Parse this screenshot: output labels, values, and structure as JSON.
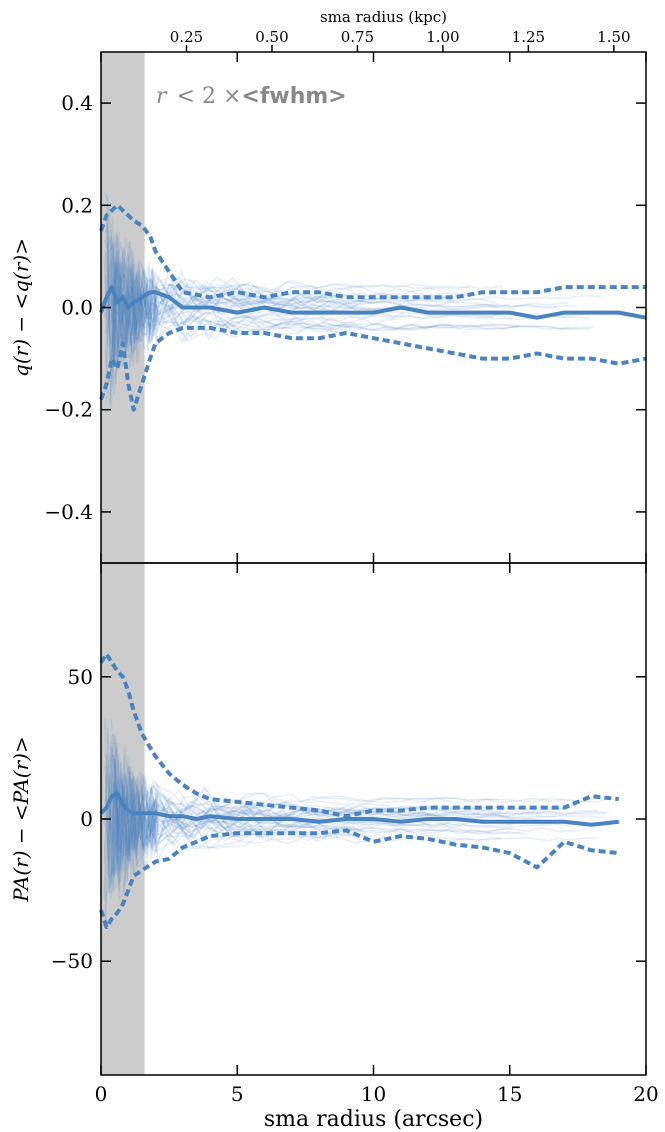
{
  "chart_data": [
    {
      "type": "line",
      "panel": "top",
      "ylabel": "q(r) − <q(r)>",
      "xlim": [
        0,
        20
      ],
      "ylim": [
        -0.5,
        0.5
      ],
      "yticks": [
        -0.4,
        -0.2,
        0.0,
        0.2,
        0.4
      ],
      "ytick_labels": [
        "−0.4",
        "−0.2",
        "0.0",
        "0.2",
        "0.4"
      ],
      "top_axis": {
        "label": "sma radius (kpc)",
        "ticks": [
          0.25,
          0.5,
          0.75,
          1.0,
          1.25,
          1.5
        ],
        "tick_labels": [
          "0.25",
          "0.50",
          "0.75",
          "1.00",
          "1.25",
          "1.50"
        ],
        "kpc_per_arcsec": 0.0797
      },
      "shaded_region": {
        "x": [
          0,
          1.6
        ],
        "label_prefix": "r",
        "label_mid": "< 2 ×",
        "label_suffix": "<fwhm>"
      },
      "series": [
        {
          "role": "median",
          "style": "solid",
          "x": [
            0,
            0.2,
            0.4,
            0.6,
            0.8,
            1.0,
            1.2,
            1.5,
            1.8,
            2.0,
            2.5,
            3.0,
            4.0,
            5.0,
            6.0,
            7.0,
            8.0,
            9.0,
            10.0,
            11.0,
            12.0,
            13.0,
            14.0,
            15.0,
            16.0,
            17.0,
            18.0,
            19.0,
            20.0
          ],
          "y": [
            -0.01,
            0.02,
            0.04,
            0.01,
            0.02,
            0.0,
            0.01,
            0.02,
            0.03,
            0.03,
            0.02,
            0.0,
            0.0,
            -0.01,
            0.0,
            -0.01,
            -0.01,
            -0.01,
            -0.01,
            0.0,
            -0.01,
            -0.01,
            -0.01,
            -0.01,
            -0.02,
            -0.01,
            -0.01,
            -0.01,
            -0.02
          ]
        },
        {
          "role": "upper",
          "style": "dashed",
          "x": [
            0,
            0.2,
            0.4,
            0.6,
            0.8,
            1.0,
            1.2,
            1.5,
            1.8,
            2.0,
            2.5,
            3.0,
            4.0,
            5.0,
            6.0,
            7.0,
            8.0,
            9.0,
            10.0,
            11.0,
            12.0,
            13.0,
            14.0,
            15.0,
            16.0,
            17.0,
            18.0,
            19.0,
            20.0
          ],
          "y": [
            0.15,
            0.18,
            0.19,
            0.2,
            0.19,
            0.18,
            0.17,
            0.16,
            0.14,
            0.11,
            0.07,
            0.03,
            0.02,
            0.03,
            0.02,
            0.03,
            0.03,
            0.02,
            0.02,
            0.02,
            0.02,
            0.02,
            0.03,
            0.03,
            0.03,
            0.04,
            0.04,
            0.04,
            0.04
          ]
        },
        {
          "role": "lower",
          "style": "dashed",
          "x": [
            0,
            0.2,
            0.4,
            0.6,
            0.8,
            1.0,
            1.2,
            1.5,
            1.8,
            2.0,
            2.5,
            3.0,
            4.0,
            5.0,
            6.0,
            7.0,
            8.0,
            9.0,
            10.0,
            11.0,
            12.0,
            13.0,
            14.0,
            15.0,
            16.0,
            17.0,
            18.0,
            19.0,
            20.0
          ],
          "y": [
            -0.18,
            -0.15,
            -0.1,
            -0.12,
            -0.07,
            -0.15,
            -0.2,
            -0.15,
            -0.1,
            -0.07,
            -0.05,
            -0.04,
            -0.04,
            -0.05,
            -0.05,
            -0.06,
            -0.06,
            -0.05,
            -0.06,
            -0.07,
            -0.08,
            -0.09,
            -0.1,
            -0.1,
            -0.09,
            -0.1,
            -0.1,
            -0.11,
            -0.1
          ]
        }
      ]
    },
    {
      "type": "line",
      "panel": "bottom",
      "xlabel": "sma radius (arcsec)",
      "ylabel": "PA(r) − <PA(r)>",
      "xlim": [
        0,
        20
      ],
      "ylim": [
        -90,
        90
      ],
      "xticks": [
        0,
        5,
        10,
        15,
        20
      ],
      "xtick_labels": [
        "0",
        "5",
        "10",
        "15",
        "20"
      ],
      "yticks": [
        -50,
        0,
        50
      ],
      "ytick_labels": [
        "−50",
        "0",
        "50"
      ],
      "shaded_region": {
        "x": [
          0,
          1.6
        ]
      },
      "series": [
        {
          "role": "median",
          "style": "solid",
          "x": [
            0,
            0.2,
            0.4,
            0.6,
            0.8,
            1.0,
            1.2,
            1.5,
            2.0,
            2.5,
            3.0,
            3.5,
            4.0,
            5.0,
            6.0,
            7.0,
            8.0,
            9.0,
            10.0,
            11.0,
            12.0,
            13.0,
            14.0,
            15.0,
            16.0,
            17.0,
            18.0,
            19.0
          ],
          "y": [
            2,
            4,
            8,
            9,
            5,
            3,
            2,
            2,
            2,
            1,
            1,
            0,
            1,
            0,
            0,
            0,
            -1,
            0,
            0,
            -1,
            0,
            0,
            -1,
            -1,
            -1,
            -1,
            -2,
            -1
          ]
        },
        {
          "role": "upper",
          "style": "dashed",
          "x": [
            0,
            0.2,
            0.4,
            0.6,
            0.8,
            1.0,
            1.2,
            1.5,
            2.0,
            2.5,
            3.0,
            3.5,
            4.0,
            5.0,
            6.0,
            7.0,
            8.0,
            9.0,
            10.0,
            11.0,
            12.0,
            13.0,
            14.0,
            15.0,
            16.0,
            17.0,
            18.0,
            19.0
          ],
          "y": [
            55,
            58,
            55,
            52,
            50,
            45,
            38,
            30,
            22,
            16,
            12,
            9,
            7,
            6,
            5,
            4,
            3,
            1,
            3,
            3,
            4,
            4,
            4,
            4,
            4,
            4,
            8,
            7
          ]
        },
        {
          "role": "lower",
          "style": "dashed",
          "x": [
            0,
            0.2,
            0.4,
            0.6,
            0.8,
            1.0,
            1.2,
            1.5,
            2.0,
            2.5,
            3.0,
            3.5,
            4.0,
            5.0,
            6.0,
            7.0,
            8.0,
            9.0,
            10.0,
            11.0,
            12.0,
            13.0,
            14.0,
            15.0,
            16.0,
            17.0,
            18.0,
            19.0
          ],
          "y": [
            -32,
            -38,
            -35,
            -33,
            -30,
            -25,
            -20,
            -18,
            -15,
            -14,
            -10,
            -8,
            -6,
            -5,
            -5,
            -5,
            -5,
            -4,
            -8,
            -6,
            -7,
            -9,
            -10,
            -12,
            -17,
            -8,
            -11,
            -12
          ]
        }
      ]
    }
  ],
  "colors": {
    "line": "#4a84c0",
    "shade": "#cccccc",
    "thin": "#4a84c0"
  }
}
